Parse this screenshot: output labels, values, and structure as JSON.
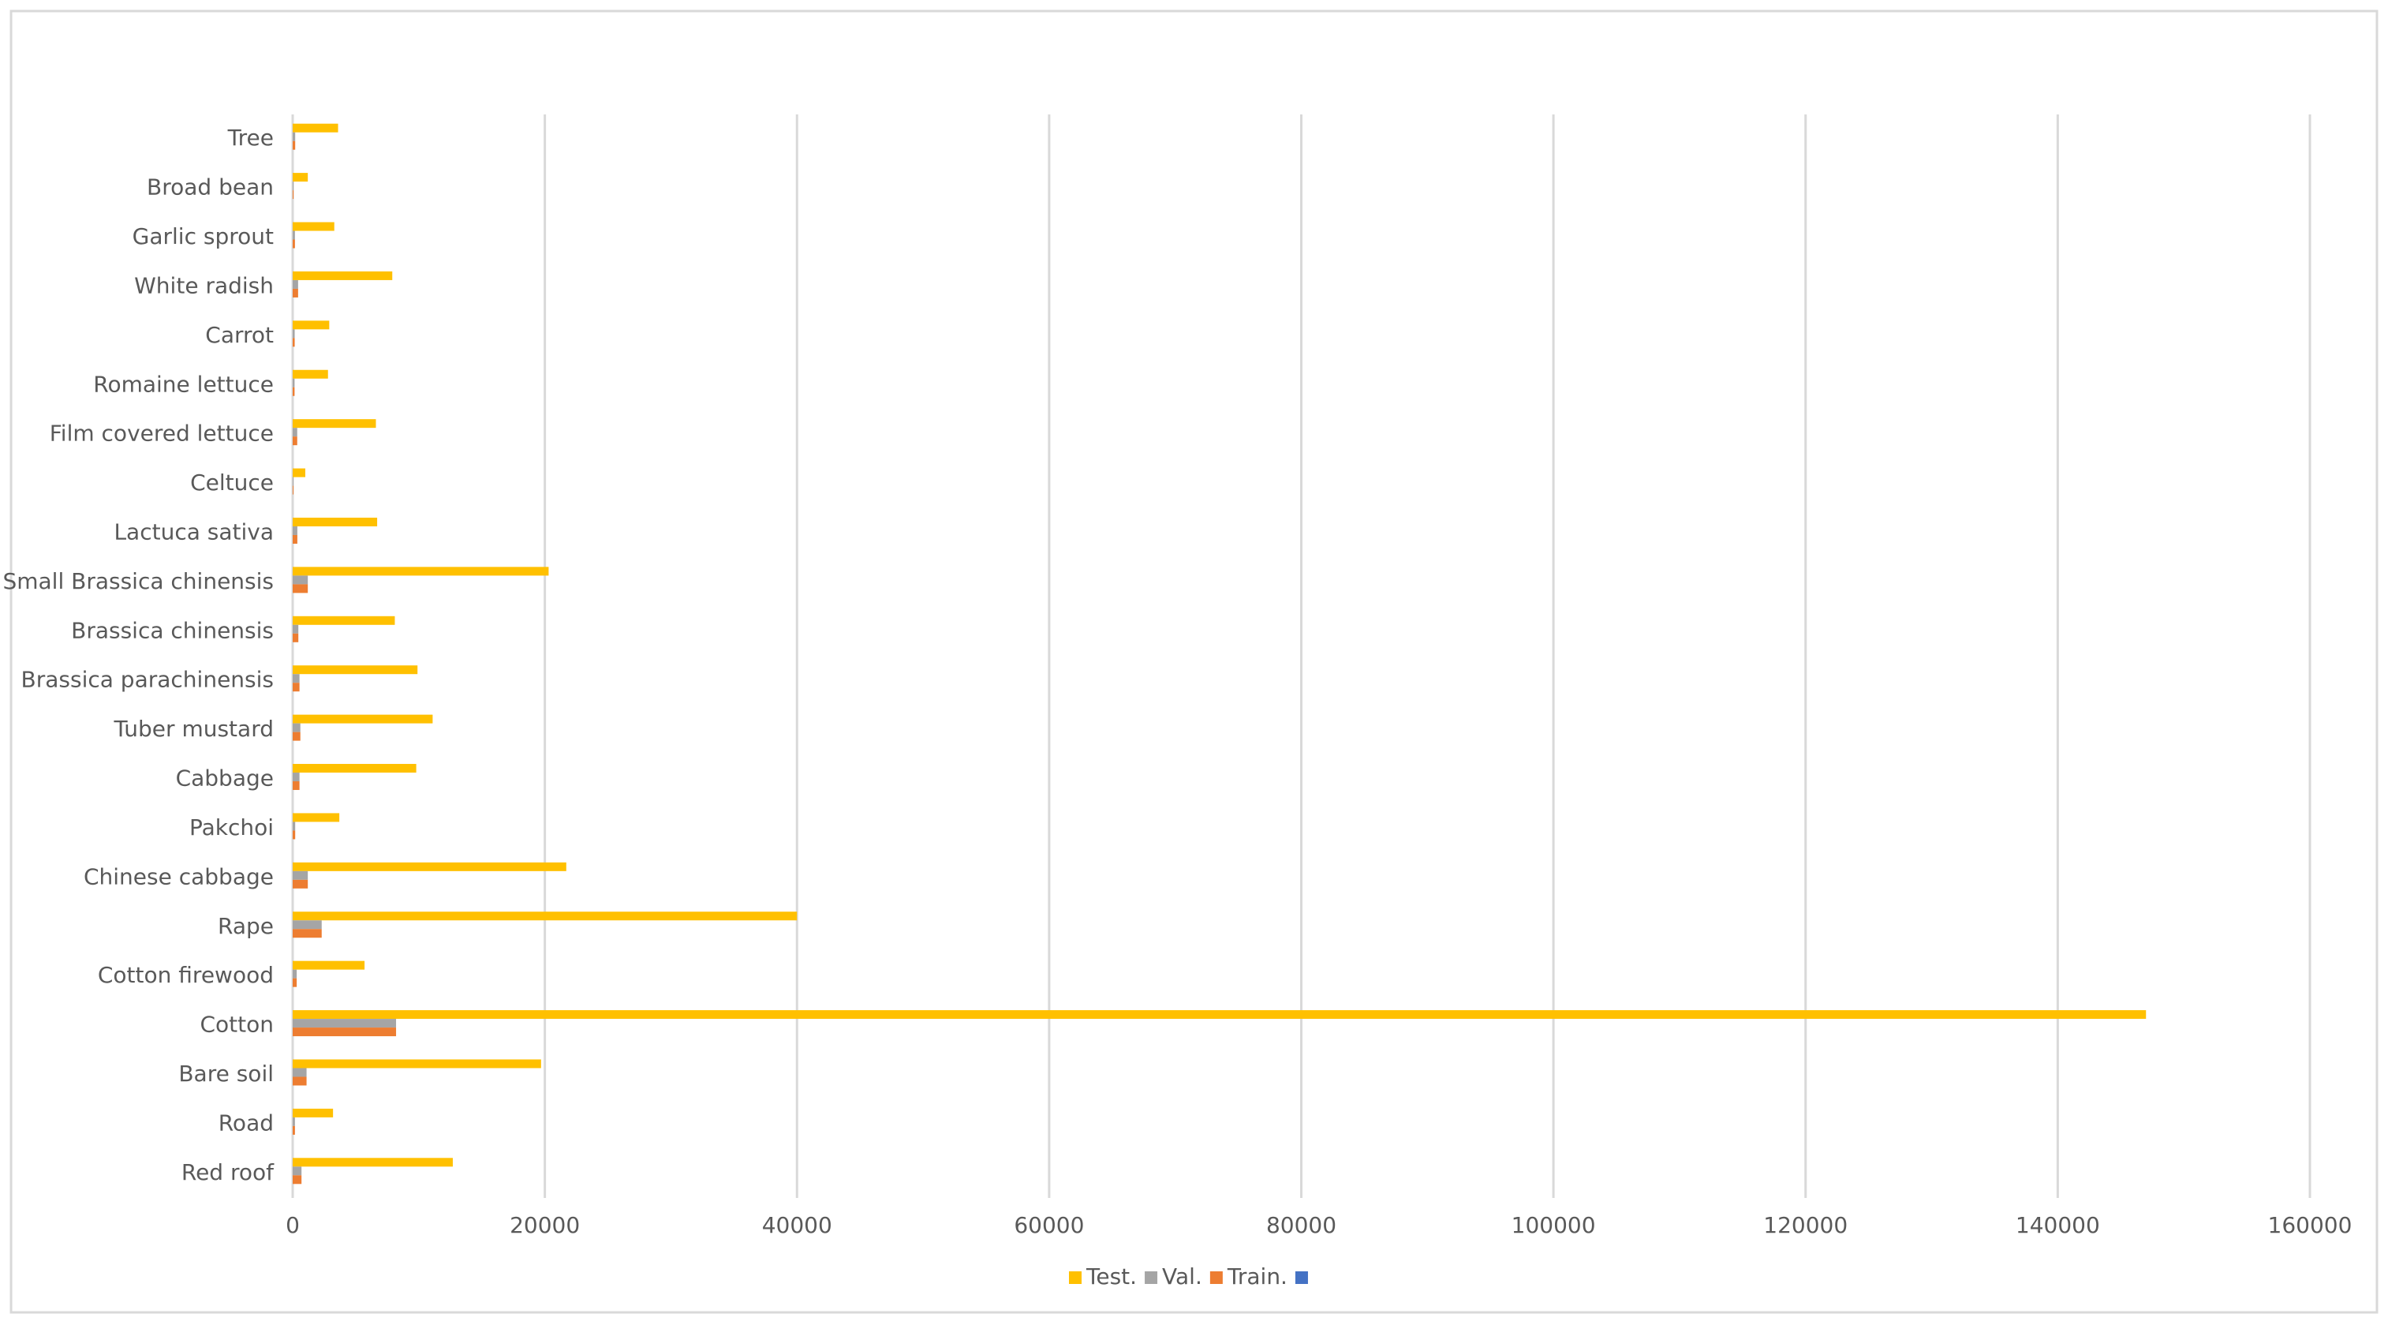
{
  "chart_data": {
    "type": "bar",
    "orientation": "horizontal",
    "categories": [
      "Red roof",
      "Road",
      "Bare soil",
      "Cotton",
      "Cotton firewood",
      "Rape",
      "Chinese cabbage",
      "Pakchoi",
      "Cabbage",
      "Tuber mustard",
      "Brassica parachinensis",
      "Brassica chinensis",
      "Small Brassica chinensis",
      "Lactuca sativa",
      "Celtuce",
      "Film covered lettuce",
      "Romaine lettuce",
      "Carrot",
      "White radish",
      "Garlic sprout",
      "Broad bean",
      "Tree"
    ],
    "series": [
      {
        "name": "Test.",
        "color": "#ffc000",
        "values": [
          12700,
          3200,
          19700,
          147000,
          5700,
          40000,
          21700,
          3700,
          9800,
          11100,
          9900,
          8100,
          20300,
          6700,
          1000,
          6600,
          2800,
          2900,
          7900,
          3300,
          1200,
          3600
        ]
      },
      {
        "name": "Val.",
        "color": "#a5a5a5",
        "values": [
          700,
          180,
          1100,
          8200,
          320,
          2300,
          1200,
          200,
          540,
          610,
          540,
          450,
          1200,
          370,
          60,
          360,
          150,
          160,
          430,
          180,
          70,
          200
        ]
      },
      {
        "name": "Train.",
        "color": "#ed7d31",
        "values": [
          700,
          180,
          1100,
          8200,
          320,
          2300,
          1200,
          200,
          540,
          610,
          540,
          450,
          1200,
          370,
          60,
          360,
          150,
          160,
          430,
          180,
          70,
          200
        ]
      },
      {
        "name": null,
        "color": "#4472c4",
        "values": [
          null,
          null,
          null,
          null,
          null,
          null,
          null,
          null,
          null,
          null,
          null,
          null,
          null,
          null,
          null,
          null,
          null,
          null,
          null,
          null,
          null,
          null
        ]
      }
    ],
    "xlim": [
      0,
      160000
    ],
    "xticks": [
      0,
      20000,
      40000,
      60000,
      80000,
      100000,
      120000,
      140000,
      160000
    ],
    "grid": true
  }
}
